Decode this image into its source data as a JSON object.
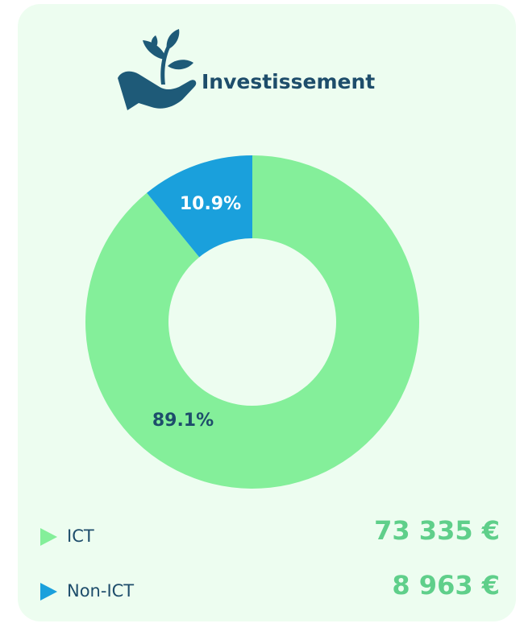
{
  "chart_data": {
    "type": "donut",
    "title": "Investissement",
    "categories": [
      "ICT",
      "Non-ICT"
    ],
    "values": [
      89.1,
      10.9
    ],
    "value_labels": [
      "89.1%",
      "10.9%"
    ],
    "colors": [
      "#84ef9a",
      "#1aa0dc"
    ],
    "label_colors": [
      "#1e4d6b",
      "#ffffff"
    ],
    "amounts": [
      "73 335 €",
      "8 963 €"
    ]
  }
}
